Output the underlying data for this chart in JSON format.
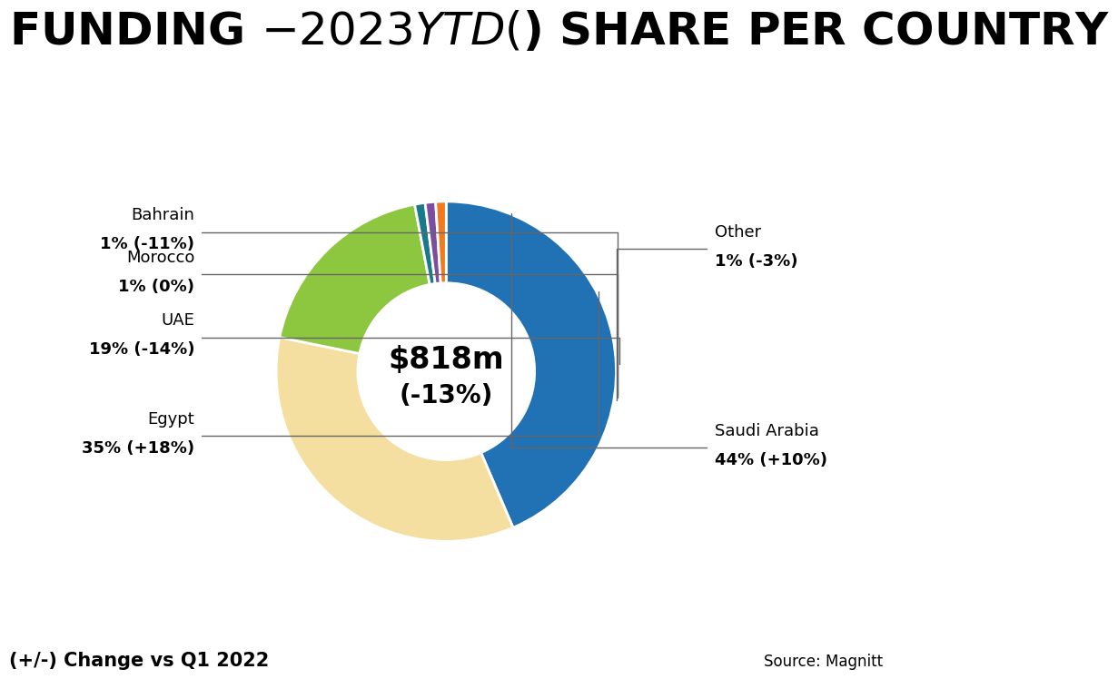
{
  "title": "FUNDING $-2023 YTD ($) SHARE PER COUNTRY",
  "center_text_line1": "$818m",
  "center_text_line2": "(-13%)",
  "segments": [
    {
      "label": "Saudi Arabia",
      "sublabel": "44% (+10%)",
      "value": 44,
      "color": "#2171B5"
    },
    {
      "label": "Egypt",
      "sublabel": "35% (+18%)",
      "value": 35,
      "color": "#F5DFA0"
    },
    {
      "label": "UAE",
      "sublabel": "19% (-14%)",
      "value": 19,
      "color": "#8DC63F"
    },
    {
      "label": "Morocco",
      "sublabel": "1% (0%)",
      "value": 1,
      "color": "#1A7A8A"
    },
    {
      "label": "Bahrain",
      "sublabel": "1% (-11%)",
      "value": 1,
      "color": "#7B4EA0"
    },
    {
      "label": "Other",
      "sublabel": "1% (-3%)",
      "value": 1,
      "color": "#F07A20"
    }
  ],
  "note": "(+/-) Change vs Q1 2022",
  "source": "Source: Magnitt",
  "background_color": "#FFFFFF",
  "title_fontsize": 36,
  "label_name_fontsize": 13,
  "label_val_fontsize": 13,
  "note_fontsize": 15,
  "source_fontsize": 12
}
